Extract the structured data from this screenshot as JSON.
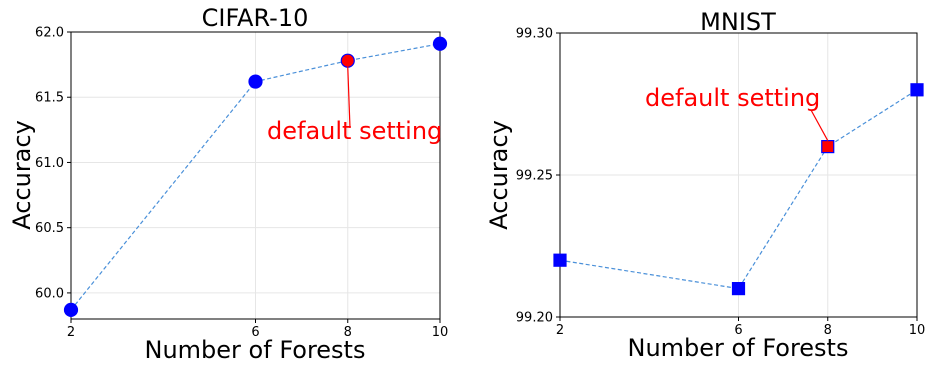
{
  "chart_data": [
    {
      "type": "line",
      "title": "CIFAR-10",
      "xlabel": "Number of Forests",
      "ylabel": "Accuracy",
      "x": [
        2,
        6,
        8,
        10
      ],
      "xticks": [
        "2",
        "6",
        "8",
        "10"
      ],
      "xlim": [
        2,
        10
      ],
      "ylim": [
        59.8,
        62.0
      ],
      "yticks": [
        "60.0",
        "60.5",
        "61.0",
        "61.5",
        "62.0"
      ],
      "ytick_values": [
        60.0,
        60.5,
        61.0,
        61.5,
        62.0
      ],
      "series": [
        {
          "values": [
            59.87,
            61.62,
            61.78,
            61.91
          ]
        }
      ],
      "marker": "circle",
      "line_color": "#4a90d9",
      "marker_color": "#0000ff",
      "highlight_color": "#ff0000",
      "highlight_index": 2,
      "annotation": {
        "text": "default setting",
        "color": "#ff0000"
      },
      "grid": true
    },
    {
      "type": "line",
      "title": "MNIST",
      "xlabel": "Number of Forests",
      "ylabel": "Accuracy",
      "x": [
        2,
        6,
        8,
        10
      ],
      "xticks": [
        "2",
        "6",
        "8",
        "10"
      ],
      "xlim": [
        2,
        10
      ],
      "ylim": [
        99.2,
        99.3
      ],
      "yticks": [
        "99.20",
        "99.25",
        "99.30"
      ],
      "ytick_values": [
        99.2,
        99.25,
        99.3
      ],
      "series": [
        {
          "values": [
            99.22,
            99.21,
            99.26,
            99.28
          ]
        }
      ],
      "marker": "square",
      "line_color": "#4a90d9",
      "marker_color": "#0000ff",
      "highlight_color": "#ff0000",
      "highlight_index": 2,
      "annotation": {
        "text": "default setting",
        "color": "#ff0000"
      },
      "grid": true
    }
  ]
}
